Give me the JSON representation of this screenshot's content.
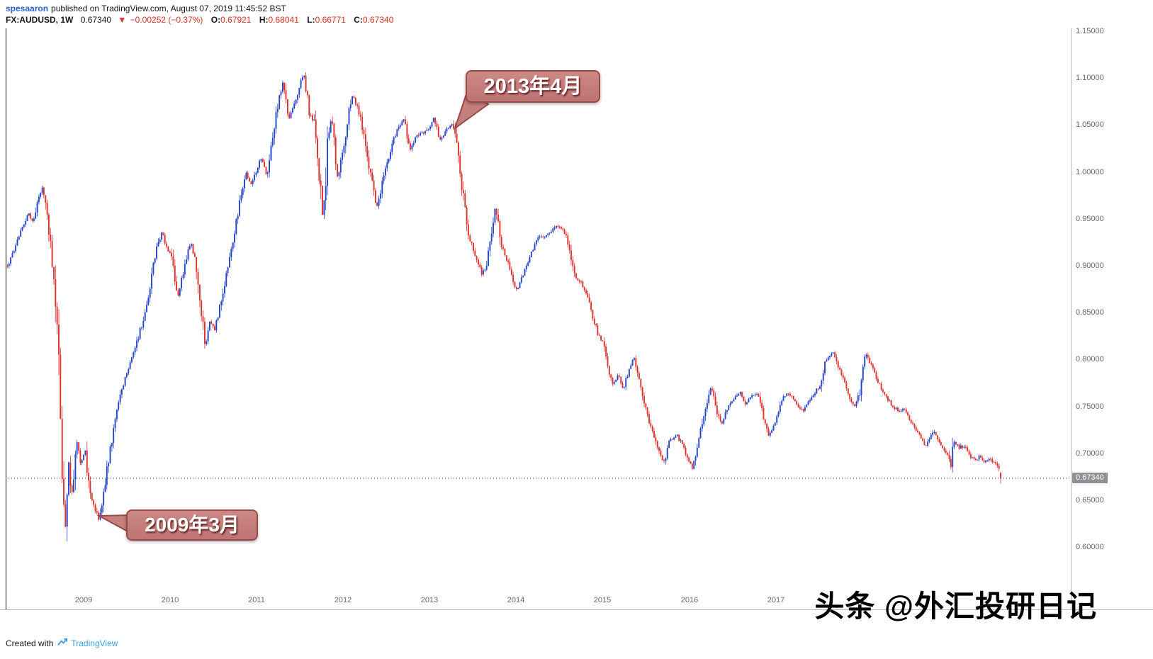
{
  "header": {
    "author": "spesaaron",
    "published_text": "published on TradingView.com, August 07, 2019 11:45:52 BST",
    "symbol": "FX:AUDUSD, 1W",
    "last_price": "0.67340",
    "direction_icon": "▼",
    "change_text": "−0.00252 (−0.37%)",
    "ohlc": [
      {
        "label": "O:",
        "value": "0.67921"
      },
      {
        "label": "H:",
        "value": "0.68041"
      },
      {
        "label": "L:",
        "value": "0.66771"
      },
      {
        "label": "C:",
        "value": "0.67340"
      }
    ]
  },
  "price_axis": {
    "labels": [
      "1.15000",
      "1.10000",
      "1.05000",
      "1.00000",
      "0.95000",
      "0.90000",
      "0.85000",
      "0.80000",
      "0.75000",
      "0.70000",
      "0.65000",
      "0.60000"
    ],
    "current": "0.67340"
  },
  "time_axis": {
    "years": [
      "2009",
      "2010",
      "2011",
      "2012",
      "2013",
      "2014",
      "2015",
      "2016",
      "2017"
    ]
  },
  "annotations": [
    {
      "text": "2013年4月"
    },
    {
      "text": "2009年3月"
    }
  ],
  "watermark": "头条 @外汇投研日记",
  "footer": {
    "created_with": "Created with",
    "brand": "TradingView"
  },
  "colors": {
    "up": "#2443cb",
    "down": "#e0302e",
    "value_red": "#d93025",
    "link_blue": "#2a62c9",
    "annotation_bg": "#c5807e",
    "annotation_border": "#994a47",
    "current_price_bg": "#8e9093",
    "brand_blue": "#3aa0e0"
  },
  "chart_data": {
    "type": "candlestick",
    "symbol": "FX:AUDUSD",
    "timeframe": "1W",
    "up_color": "#2443cb",
    "down_color": "#e0302e",
    "gridlines": false,
    "current_price": 0.6734,
    "last_candle": {
      "open": 0.67921,
      "high": 0.68041,
      "low": 0.66771,
      "close": 0.6734
    },
    "x_domain": [
      2008.1,
      2020.41
    ],
    "y_domain": [
      0.5525,
      1.153
    ],
    "t_start": 2008.12,
    "t_end": 2019.6,
    "key_points": [
      {
        "label": "2009年3月",
        "t": 2009.18,
        "price": 0.628
      },
      {
        "label": "2013年4月",
        "t": 2013.27,
        "price": 1.052
      }
    ],
    "anchors": [
      [
        2008.12,
        0.9
      ],
      [
        2008.18,
        0.912
      ],
      [
        2008.24,
        0.928
      ],
      [
        2008.3,
        0.942
      ],
      [
        2008.36,
        0.956
      ],
      [
        2008.42,
        0.945
      ],
      [
        2008.47,
        0.968
      ],
      [
        2008.52,
        0.983
      ],
      [
        2008.57,
        0.958
      ],
      [
        2008.62,
        0.925
      ],
      [
        2008.67,
        0.872
      ],
      [
        2008.71,
        0.8
      ],
      [
        2008.75,
        0.69
      ],
      [
        2008.79,
        0.618
      ],
      [
        2008.82,
        0.7
      ],
      [
        2008.86,
        0.652
      ],
      [
        2008.9,
        0.688
      ],
      [
        2008.93,
        0.716
      ],
      [
        2008.97,
        0.688
      ],
      [
        2009.02,
        0.702
      ],
      [
        2009.07,
        0.658
      ],
      [
        2009.12,
        0.645
      ],
      [
        2009.18,
        0.628
      ],
      [
        2009.24,
        0.664
      ],
      [
        2009.3,
        0.7
      ],
      [
        2009.36,
        0.732
      ],
      [
        2009.44,
        0.768
      ],
      [
        2009.52,
        0.79
      ],
      [
        2009.6,
        0.812
      ],
      [
        2009.68,
        0.84
      ],
      [
        2009.76,
        0.873
      ],
      [
        2009.84,
        0.916
      ],
      [
        2009.9,
        0.936
      ],
      [
        2009.96,
        0.92
      ],
      [
        2010.02,
        0.91
      ],
      [
        2010.09,
        0.867
      ],
      [
        2010.16,
        0.896
      ],
      [
        2010.24,
        0.926
      ],
      [
        2010.3,
        0.9
      ],
      [
        2010.36,
        0.855
      ],
      [
        2010.41,
        0.813
      ],
      [
        2010.46,
        0.842
      ],
      [
        2010.52,
        0.832
      ],
      [
        2010.58,
        0.858
      ],
      [
        2010.66,
        0.896
      ],
      [
        2010.74,
        0.932
      ],
      [
        2010.82,
        0.976
      ],
      [
        2010.88,
        1.0
      ],
      [
        2010.94,
        0.986
      ],
      [
        2011.0,
        1.002
      ],
      [
        2011.06,
        1.016
      ],
      [
        2011.12,
        0.996
      ],
      [
        2011.18,
        1.032
      ],
      [
        2011.24,
        1.07
      ],
      [
        2011.31,
        1.098
      ],
      [
        2011.37,
        1.056
      ],
      [
        2011.44,
        1.072
      ],
      [
        2011.5,
        1.094
      ],
      [
        2011.55,
        1.104
      ],
      [
        2011.61,
        1.062
      ],
      [
        2011.67,
        1.052
      ],
      [
        2011.72,
        1.0
      ],
      [
        2011.77,
        0.945
      ],
      [
        2011.82,
        1.036
      ],
      [
        2011.87,
        1.058
      ],
      [
        2011.93,
        0.992
      ],
      [
        2012.0,
        1.024
      ],
      [
        2012.06,
        1.062
      ],
      [
        2012.11,
        1.082
      ],
      [
        2012.18,
        1.064
      ],
      [
        2012.25,
        1.036
      ],
      [
        2012.32,
        0.996
      ],
      [
        2012.39,
        0.962
      ],
      [
        2012.46,
        0.992
      ],
      [
        2012.53,
        1.016
      ],
      [
        2012.61,
        1.042
      ],
      [
        2012.7,
        1.056
      ],
      [
        2012.77,
        1.024
      ],
      [
        2012.85,
        1.038
      ],
      [
        2012.93,
        1.042
      ],
      [
        2013.0,
        1.048
      ],
      [
        2013.05,
        1.058
      ],
      [
        2013.11,
        1.034
      ],
      [
        2013.19,
        1.044
      ],
      [
        2013.27,
        1.052
      ],
      [
        2013.34,
        1.012
      ],
      [
        2013.4,
        0.963
      ],
      [
        2013.46,
        0.93
      ],
      [
        2013.53,
        0.91
      ],
      [
        2013.6,
        0.891
      ],
      [
        2013.65,
        0.898
      ],
      [
        2013.71,
        0.932
      ],
      [
        2013.76,
        0.965
      ],
      [
        2013.83,
        0.922
      ],
      [
        2013.92,
        0.9
      ],
      [
        2014.0,
        0.873
      ],
      [
        2014.08,
        0.891
      ],
      [
        2014.16,
        0.91
      ],
      [
        2014.24,
        0.928
      ],
      [
        2014.32,
        0.932
      ],
      [
        2014.4,
        0.937
      ],
      [
        2014.48,
        0.943
      ],
      [
        2014.55,
        0.938
      ],
      [
        2014.62,
        0.917
      ],
      [
        2014.68,
        0.888
      ],
      [
        2014.75,
        0.882
      ],
      [
        2014.82,
        0.87
      ],
      [
        2014.88,
        0.848
      ],
      [
        2014.94,
        0.828
      ],
      [
        2015.0,
        0.818
      ],
      [
        2015.06,
        0.793
      ],
      [
        2015.12,
        0.772
      ],
      [
        2015.18,
        0.784
      ],
      [
        2015.24,
        0.768
      ],
      [
        2015.3,
        0.788
      ],
      [
        2015.36,
        0.802
      ],
      [
        2015.44,
        0.768
      ],
      [
        2015.53,
        0.735
      ],
      [
        2015.61,
        0.712
      ],
      [
        2015.67,
        0.696
      ],
      [
        2015.71,
        0.69
      ],
      [
        2015.77,
        0.712
      ],
      [
        2015.85,
        0.72
      ],
      [
        2015.93,
        0.708
      ],
      [
        2016.0,
        0.69
      ],
      [
        2016.04,
        0.684
      ],
      [
        2016.1,
        0.708
      ],
      [
        2016.18,
        0.745
      ],
      [
        2016.25,
        0.772
      ],
      [
        2016.31,
        0.748
      ],
      [
        2016.37,
        0.73
      ],
      [
        2016.43,
        0.746
      ],
      [
        2016.51,
        0.757
      ],
      [
        2016.59,
        0.764
      ],
      [
        2016.65,
        0.753
      ],
      [
        2016.71,
        0.76
      ],
      [
        2016.79,
        0.764
      ],
      [
        2016.86,
        0.738
      ],
      [
        2016.92,
        0.719
      ],
      [
        2017.0,
        0.733
      ],
      [
        2017.07,
        0.757
      ],
      [
        2017.13,
        0.764
      ],
      [
        2017.2,
        0.76
      ],
      [
        2017.26,
        0.749
      ],
      [
        2017.32,
        0.745
      ],
      [
        2017.38,
        0.756
      ],
      [
        2017.44,
        0.764
      ],
      [
        2017.51,
        0.771
      ],
      [
        2017.56,
        0.794
      ],
      [
        2017.62,
        0.805
      ],
      [
        2017.67,
        0.809
      ],
      [
        2017.73,
        0.79
      ],
      [
        2017.78,
        0.779
      ],
      [
        2017.85,
        0.76
      ],
      [
        2017.91,
        0.749
      ],
      [
        2017.97,
        0.764
      ],
      [
        2018.03,
        0.806
      ],
      [
        2018.1,
        0.795
      ],
      [
        2018.17,
        0.779
      ],
      [
        2018.24,
        0.764
      ],
      [
        2018.3,
        0.757
      ],
      [
        2018.36,
        0.749
      ],
      [
        2018.42,
        0.745
      ],
      [
        2018.48,
        0.749
      ],
      [
        2018.54,
        0.738
      ],
      [
        2018.61,
        0.726
      ],
      [
        2018.66,
        0.719
      ],
      [
        2018.73,
        0.707
      ],
      [
        2018.79,
        0.719
      ],
      [
        2018.84,
        0.722
      ],
      [
        2018.91,
        0.708
      ],
      [
        2018.97,
        0.7
      ],
      [
        2019.005,
        0.695
      ],
      [
        2019.02,
        0.677
      ],
      [
        2019.04,
        0.706
      ],
      [
        2019.06,
        0.712
      ],
      [
        2019.12,
        0.706
      ],
      [
        2019.18,
        0.708
      ],
      [
        2019.24,
        0.697
      ],
      [
        2019.3,
        0.693
      ],
      [
        2019.37,
        0.697
      ],
      [
        2019.42,
        0.69
      ],
      [
        2019.47,
        0.693
      ],
      [
        2019.53,
        0.69
      ],
      [
        2019.57,
        0.686
      ],
      [
        2019.6,
        0.6734
      ]
    ]
  }
}
